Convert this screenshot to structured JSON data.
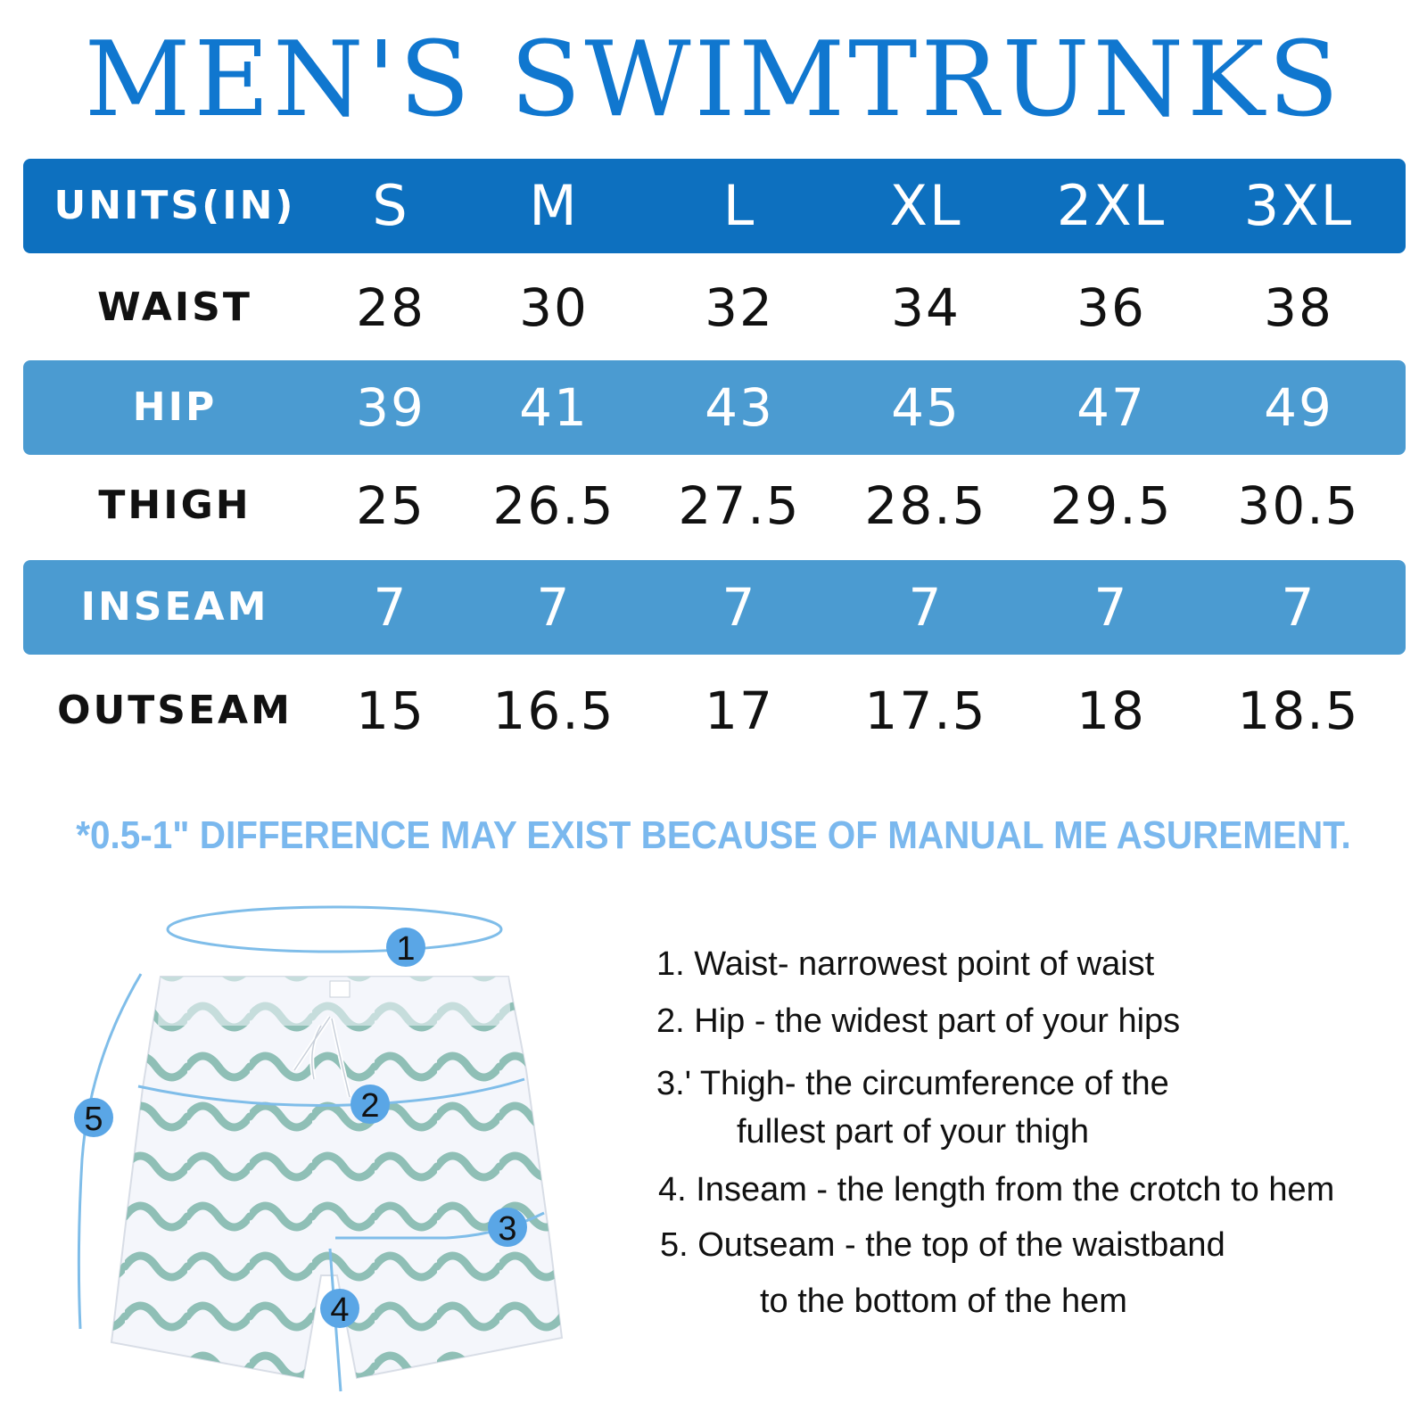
{
  "title": "MEN'S SWIMTRUNKS",
  "table": {
    "header": {
      "label": "UNITS(IN)",
      "sizes": [
        "S",
        "M",
        "L",
        "XL",
        "2XL",
        "3XL"
      ]
    },
    "rows": [
      {
        "label": "WAIST",
        "values": [
          "28",
          "30",
          "32",
          "34",
          "36",
          "38"
        ]
      },
      {
        "label": "HIP",
        "values": [
          "39",
          "41",
          "43",
          "45",
          "47",
          "49"
        ]
      },
      {
        "label": "THIGH",
        "values": [
          "25",
          "26.5",
          "27.5",
          "28.5",
          "29.5",
          "30.5"
        ]
      },
      {
        "label": "INSEAM",
        "values": [
          "7",
          "7",
          "7",
          "7",
          "7",
          "7"
        ]
      },
      {
        "label": "OUTSEAM",
        "values": [
          "15",
          "16.5",
          "17",
          "17.5",
          "18",
          "18.5"
        ]
      }
    ]
  },
  "note": "*0.5-1\" DIFFERENCE MAY EXIST BECAUSE OF MANUAL ME ASUREMENT.",
  "markers": [
    "1",
    "2",
    "3",
    "4",
    "5"
  ],
  "legend": {
    "line1": "1. Waist- narrowest point of waist",
    "line2": "2. Hip - the widest part of your hips",
    "line3a": "3.' Thigh- the circumference of the",
    "line3b": "fullest part of your thigh",
    "line4": "4. Inseam - the length from the crotch to hem",
    "line5a": "5. Outseam - the top of the waistband",
    "line5b": "to the bottom of the hem"
  },
  "colors": {
    "title": "#1077cf",
    "header_band": "#0d70bf",
    "light_band": "#4b9bd1",
    "note": "#7ab8ee",
    "wave": "#8fbfb6",
    "marker": "#5aa6e6"
  }
}
